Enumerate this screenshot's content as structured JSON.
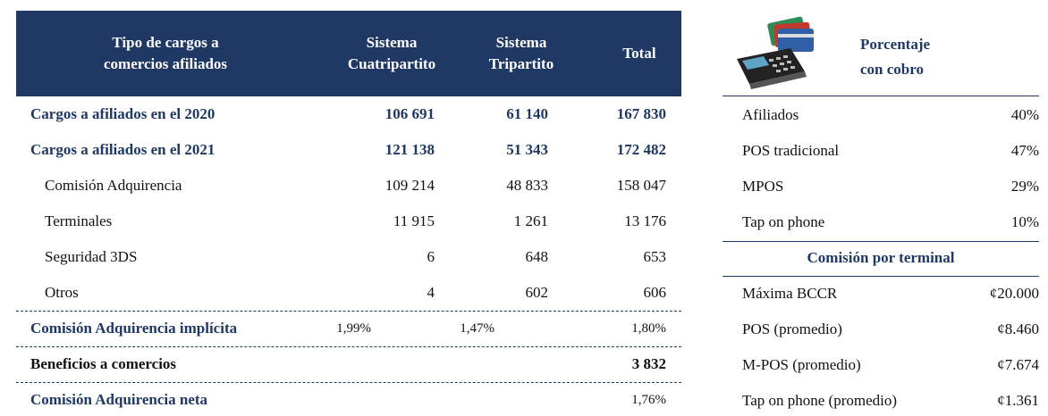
{
  "table": {
    "header": [
      [
        "Tipo de cargos a",
        "comercios afiliados"
      ],
      [
        "Sistema",
        "Cuatripartito"
      ],
      [
        "Sistema",
        "Tripartito"
      ],
      [
        "Total"
      ]
    ],
    "rows": [
      {
        "label": "Cargos a afiliados en el 2020",
        "cuatripartito": "106 691",
        "tripartito": "61 140",
        "total": "167 830"
      },
      {
        "label": "Cargos a afiliados en el 2021",
        "cuatripartito": "121 138",
        "tripartito": "51 343",
        "total": "172 482"
      },
      {
        "label": "Comisión Adquirencia",
        "cuatripartito": "109 214",
        "tripartito": "48 833",
        "total": "158 047"
      },
      {
        "label": "Terminales",
        "cuatripartito": "11 915",
        "tripartito": "1 261",
        "total": "13 176"
      },
      {
        "label": "Seguridad 3DS",
        "cuatripartito": "6",
        "tripartito": "648",
        "total": "653"
      },
      {
        "label": "Otros",
        "cuatripartito": "4",
        "tripartito": "602",
        "total": "606"
      },
      {
        "label": "Comisión Adquirencia implícita",
        "cuatripartito": "1,99%",
        "tripartito": "1,47%",
        "total": "1,80%"
      },
      {
        "label": "Beneficios a comercios",
        "total": "3 832"
      },
      {
        "label": "Comisión Adquirencia neta",
        "total": "1,76%"
      }
    ]
  },
  "side": {
    "title": [
      "Porcentaje",
      "con cobro"
    ],
    "percentages": [
      {
        "label": "Afiliados",
        "value": "40%"
      },
      {
        "label": "POS tradicional",
        "value": "47%"
      },
      {
        "label": "MPOS",
        "value": "29%"
      },
      {
        "label": "Tap on phone",
        "value": "10%"
      }
    ],
    "terminal_title": "Comisión por terminal",
    "terminal_fees": [
      {
        "label": "Máxima BCCR",
        "value": "¢20.000"
      },
      {
        "label": "POS (promedio)",
        "value": "¢8.460"
      },
      {
        "label": "M-POS (promedio)",
        "value": "¢7.674"
      },
      {
        "label": "Tap on phone (promedio)",
        "value": "¢1.361"
      }
    ]
  }
}
